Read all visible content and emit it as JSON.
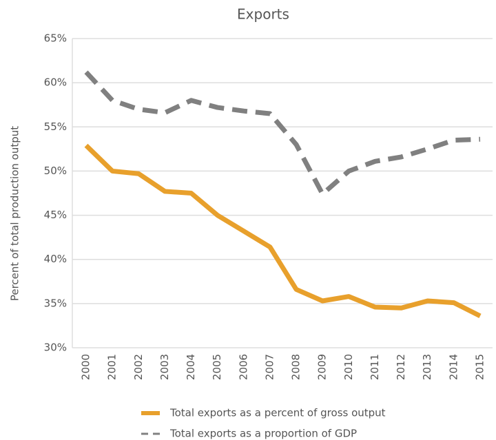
{
  "chart_data": {
    "type": "line",
    "title": "Exports",
    "y_label": "Percent of total production output",
    "categories": [
      "2000",
      "2001",
      "2002",
      "2003",
      "2004",
      "2005",
      "2006",
      "2007",
      "2008",
      "2009",
      "2010",
      "2011",
      "2012",
      "2013",
      "2014",
      "2015"
    ],
    "series": [
      {
        "name": "Total exports as a percent of gross output",
        "color": "#e8a02c",
        "dash": false,
        "values": [
          52.9,
          50.0,
          49.7,
          47.7,
          47.5,
          45.0,
          43.2,
          41.4,
          36.6,
          35.3,
          35.8,
          34.6,
          34.5,
          35.3,
          35.1,
          33.6
        ]
      },
      {
        "name": "Total exports as a proportion of GDP",
        "color": "#808080",
        "dash": true,
        "values": [
          61.2,
          58.0,
          57.0,
          56.6,
          58.0,
          57.2,
          56.8,
          56.5,
          53.0,
          47.4,
          50.0,
          51.1,
          51.6,
          52.5,
          53.5,
          53.6
        ]
      }
    ],
    "ylim": [
      30,
      65
    ],
    "yticks": [
      {
        "value": 30,
        "label": "30%"
      },
      {
        "value": 35,
        "label": "35%"
      },
      {
        "value": 40,
        "label": "40%"
      },
      {
        "value": 45,
        "label": "45%"
      },
      {
        "value": 50,
        "label": "50%"
      },
      {
        "value": 55,
        "label": "55%"
      },
      {
        "value": 60,
        "label": "60%"
      },
      {
        "value": 65,
        "label": "65%"
      }
    ],
    "grid": true
  }
}
